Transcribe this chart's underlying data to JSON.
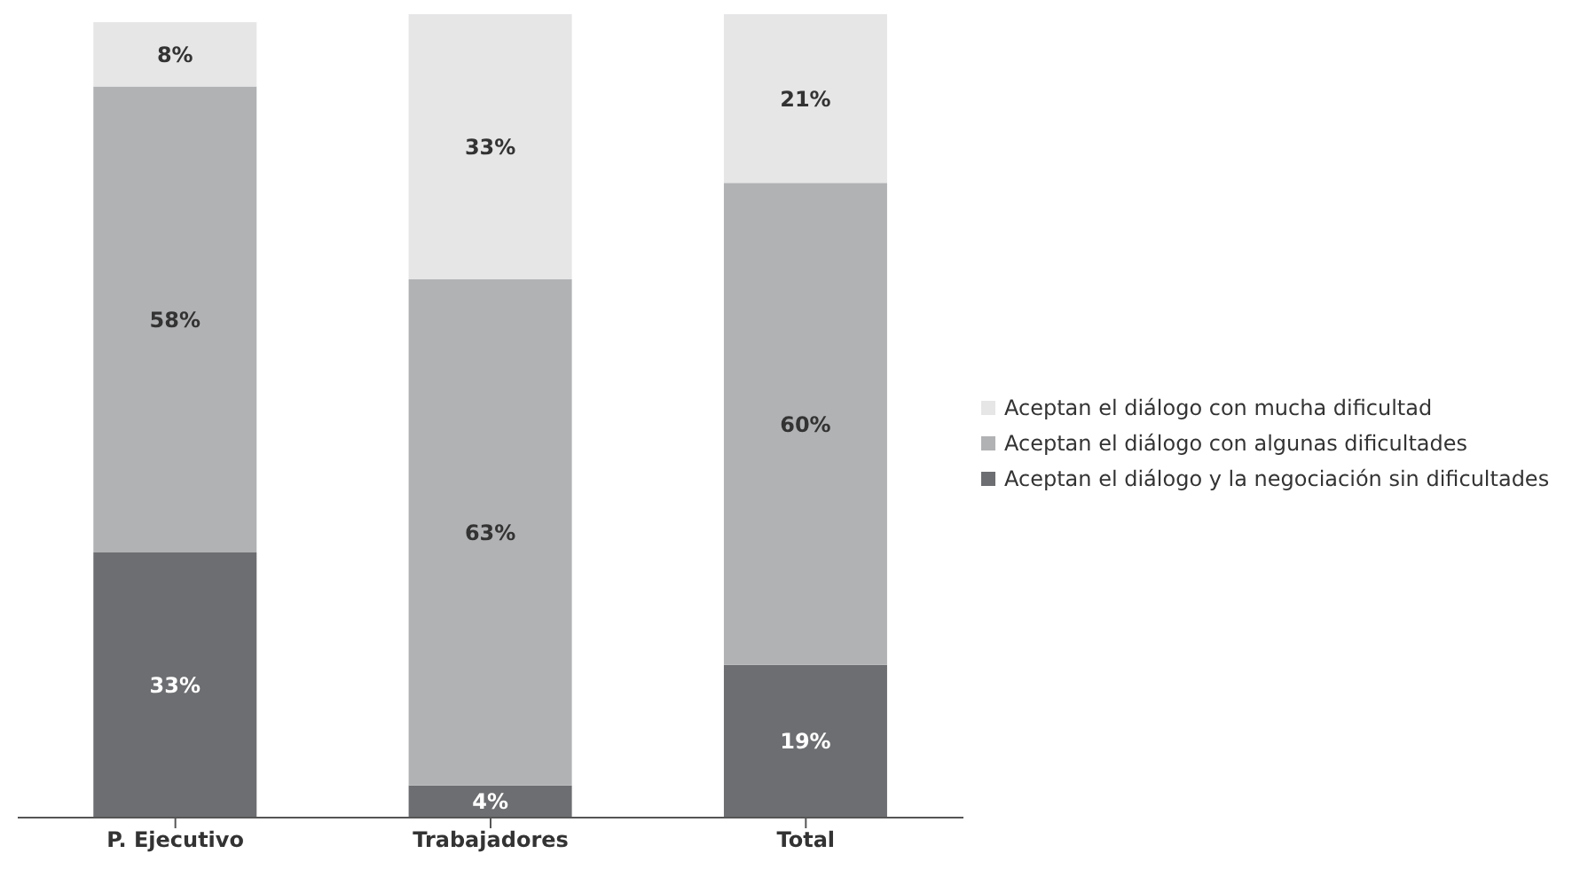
{
  "chart_data": {
    "type": "bar",
    "stacked": true,
    "legend": "right",
    "categories": [
      "P. Ejecutivo",
      "Trabajadores",
      "Total"
    ],
    "series": [
      {
        "name": "Aceptan el diálogo y la negociación sin dificultades",
        "color": "#6d6e71",
        "values": [
          33,
          4,
          19
        ],
        "value_labels": [
          "33%",
          "4%",
          "19%"
        ]
      },
      {
        "name": "Aceptan el diálogo con algunas dificultades",
        "color": "#b1b2b4",
        "values": [
          58,
          63,
          60
        ],
        "value_labels": [
          "58%",
          "63%",
          "60%"
        ]
      },
      {
        "name": "Aceptan el diálogo con mucha dificultad",
        "color": "#e6e6e7",
        "values": [
          8,
          33,
          21
        ],
        "value_labels": [
          "8%",
          "33%",
          "21%"
        ]
      }
    ]
  }
}
